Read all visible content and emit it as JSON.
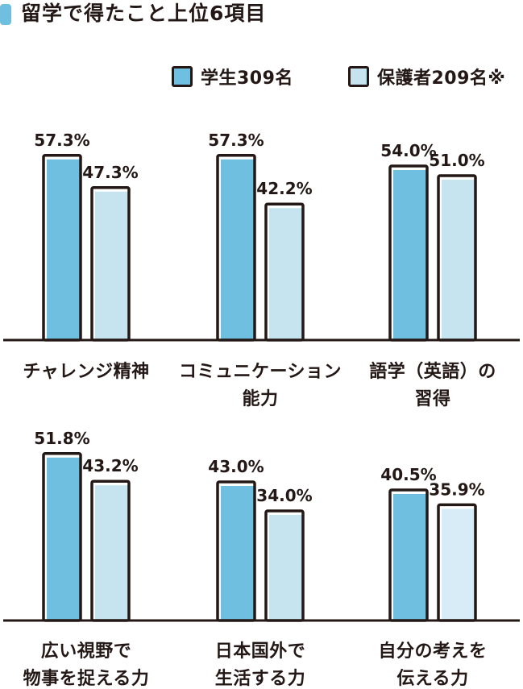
{
  "chart_data": {
    "type": "bar",
    "title": "留学で得たこと上位6項目",
    "colors": {
      "student": "#6fc0e0",
      "guardian": "#c6e4f0",
      "guardian_last": "#d8ecf8",
      "outline": "#231815",
      "title_marker": "#6fc0e0"
    },
    "series": [
      {
        "name": "学生309名"
      },
      {
        "name": "保護者209名※"
      }
    ],
    "ylim": [
      0,
      60
    ],
    "panels": [
      {
        "categories": [
          {
            "lines": [
              "チャレンジ精神"
            ],
            "values": [
              57.3,
              47.3
            ],
            "labels": [
              "57.3%",
              "47.3%"
            ]
          },
          {
            "lines": [
              "コミュニケーション",
              "能力"
            ],
            "values": [
              57.3,
              42.2
            ],
            "labels": [
              "57.3%",
              "42.2%"
            ]
          },
          {
            "lines": [
              "語学（英語）の",
              "習得"
            ],
            "values": [
              54.0,
              51.0
            ],
            "labels": [
              "54.0%",
              "51.0%"
            ]
          }
        ]
      },
      {
        "categories": [
          {
            "lines": [
              "広い視野で",
              "物事を捉える力"
            ],
            "values": [
              51.8,
              43.2
            ],
            "labels": [
              "51.8%",
              "43.2%"
            ]
          },
          {
            "lines": [
              "日本国外で",
              "生活する力"
            ],
            "values": [
              43.0,
              34.0
            ],
            "labels": [
              "43.0%",
              "34.0%"
            ]
          },
          {
            "lines": [
              "自分の考えを",
              "伝える力"
            ],
            "values": [
              40.5,
              35.9
            ],
            "labels": [
              "40.5%",
              "35.9%"
            ]
          }
        ]
      }
    ]
  }
}
